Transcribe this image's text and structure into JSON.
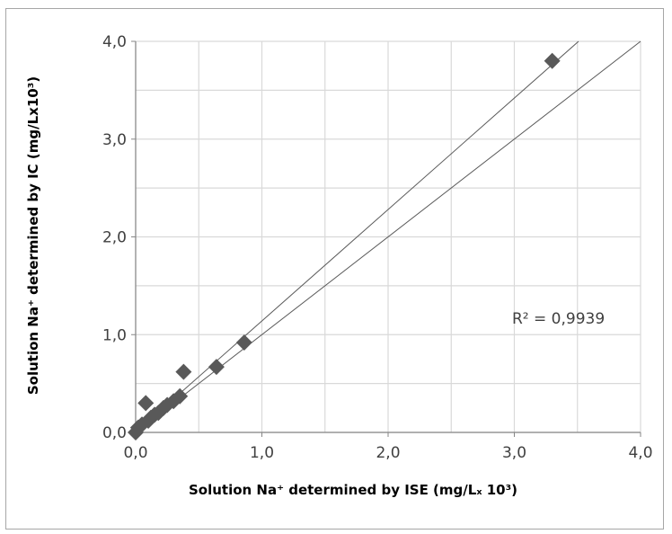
{
  "chart_data": {
    "type": "scatter",
    "xlabel": "Solution Na⁺ determined by  ISE (mg/Lₓ 10³)",
    "ylabel": "Solution Na⁺ determined by IC (mg/Lx10³)",
    "xlim": [
      0,
      4
    ],
    "ylim": [
      0,
      4
    ],
    "xticks": [
      "0,0",
      "1,0",
      "2,0",
      "3,0",
      "4,0"
    ],
    "yticks": [
      "0,0",
      "1,0",
      "2,0",
      "3,0",
      "4,0"
    ],
    "grid": true,
    "marker": "diamond",
    "marker_color": "#595959",
    "points": [
      {
        "x": 0.0,
        "y": 0.0
      },
      {
        "x": 0.02,
        "y": 0.05
      },
      {
        "x": 0.05,
        "y": 0.08
      },
      {
        "x": 0.08,
        "y": 0.3
      },
      {
        "x": 0.1,
        "y": 0.12
      },
      {
        "x": 0.12,
        "y": 0.15
      },
      {
        "x": 0.15,
        "y": 0.18
      },
      {
        "x": 0.18,
        "y": 0.2
      },
      {
        "x": 0.22,
        "y": 0.25
      },
      {
        "x": 0.25,
        "y": 0.28
      },
      {
        "x": 0.3,
        "y": 0.32
      },
      {
        "x": 0.35,
        "y": 0.37
      },
      {
        "x": 0.38,
        "y": 0.62
      },
      {
        "x": 0.64,
        "y": 0.67
      },
      {
        "x": 0.86,
        "y": 0.92
      },
      {
        "x": 3.3,
        "y": 3.8
      }
    ],
    "trendline": {
      "slope": 1.14,
      "intercept": 0.0
    },
    "reference_line": {
      "slope": 1.0,
      "intercept": 0.0
    },
    "annotation": "R² = 0,9939"
  }
}
